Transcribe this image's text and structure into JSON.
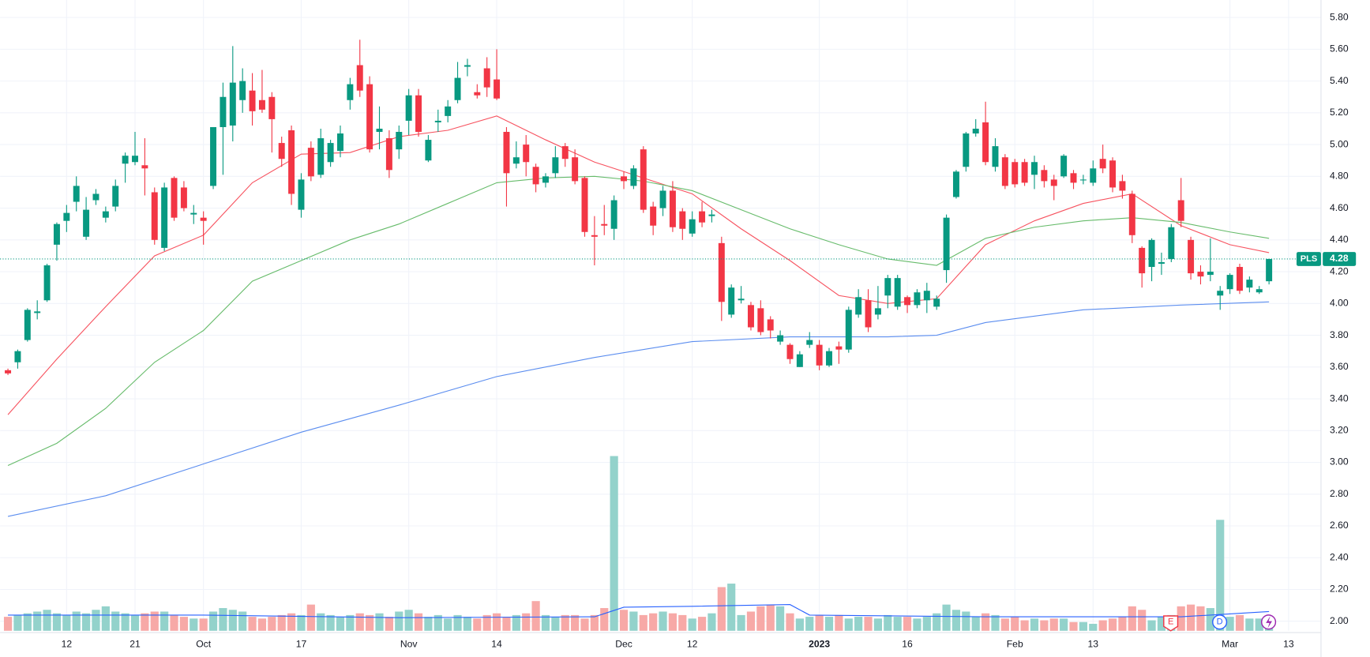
{
  "chart_data": {
    "type": "candlestick",
    "symbol": "PLS",
    "up_color": "#089981",
    "down_color": "#f23645",
    "up_volume_color": "#93d2cb",
    "down_volume_color": "#f7a9a7",
    "grid": true,
    "ylim": [
      1.94,
      5.91
    ],
    "yticks": [
      {
        "value": 2.0,
        "label": "2.00"
      },
      {
        "value": 2.2,
        "label": "2.20"
      },
      {
        "value": 2.4,
        "label": "2.40"
      },
      {
        "value": 2.6,
        "label": "2.60"
      },
      {
        "value": 2.8,
        "label": "2.80"
      },
      {
        "value": 3.0,
        "label": "3.00"
      },
      {
        "value": 3.2,
        "label": "3.20"
      },
      {
        "value": 3.4,
        "label": "3.40"
      },
      {
        "value": 3.6,
        "label": "3.60"
      },
      {
        "value": 3.8,
        "label": "3.80"
      },
      {
        "value": 4.0,
        "label": "4.00"
      },
      {
        "value": 4.2,
        "label": "4.20"
      },
      {
        "value": 4.4,
        "label": "4.40"
      },
      {
        "value": 4.6,
        "label": "4.60"
      },
      {
        "value": 4.8,
        "label": "4.80"
      },
      {
        "value": 5.0,
        "label": "5.00"
      },
      {
        "value": 5.2,
        "label": "5.20"
      },
      {
        "value": 5.4,
        "label": "5.40"
      },
      {
        "value": 5.6,
        "label": "5.60"
      },
      {
        "value": 5.8,
        "label": "5.80"
      }
    ],
    "categories": [
      null,
      null,
      null,
      null,
      null,
      null,
      "12",
      null,
      null,
      null,
      null,
      null,
      null,
      "21",
      null,
      null,
      null,
      null,
      null,
      null,
      "Oct",
      null,
      null,
      null,
      null,
      null,
      null,
      null,
      null,
      null,
      "17",
      null,
      null,
      null,
      null,
      null,
      null,
      null,
      null,
      null,
      null,
      "Nov",
      null,
      null,
      null,
      null,
      null,
      null,
      null,
      null,
      "14",
      null,
      null,
      null,
      null,
      null,
      null,
      null,
      null,
      null,
      null,
      null,
      null,
      "Dec",
      null,
      null,
      null,
      null,
      null,
      null,
      "12",
      null,
      null,
      null,
      null,
      null,
      null,
      null,
      null,
      null,
      null,
      null,
      null,
      "2023",
      null,
      null,
      null,
      null,
      null,
      null,
      null,
      null,
      "16",
      null,
      null,
      null,
      null,
      null,
      null,
      null,
      null,
      null,
      null,
      "Feb",
      null,
      null,
      null,
      null,
      null,
      null,
      null,
      "13",
      null,
      null,
      null,
      null,
      null,
      null,
      null,
      null,
      null,
      null,
      null,
      null,
      null,
      "Mar",
      null,
      null,
      null,
      null,
      null,
      "13"
    ],
    "open": [
      3.58,
      3.63,
      3.77,
      3.94,
      4.02,
      4.37,
      4.52,
      4.64,
      4.42,
      4.65,
      4.54,
      4.61,
      4.88,
      4.89,
      4.87,
      4.7,
      4.35,
      4.79,
      4.73,
      4.56,
      4.54,
      4.74,
      5.11,
      5.12,
      5.28,
      5.34,
      5.28,
      5.3,
      5.01,
      5.09,
      4.59,
      4.98,
      4.81,
      4.89,
      4.96,
      5.28,
      5.5,
      5.38,
      5.08,
      5.04,
      4.97,
      5.15,
      5.31,
      4.9,
      5.14,
      5.18,
      5.28,
      5.49,
      5.33,
      5.48,
      5.41,
      5.08,
      4.88,
      5.0,
      4.86,
      4.76,
      4.82,
      4.99,
      4.92,
      4.79,
      4.43,
      4.5,
      4.47,
      4.8,
      4.74,
      4.97,
      4.61,
      4.6,
      4.71,
      4.58,
      4.44,
      4.58,
      4.55,
      4.38,
      3.93,
      4.02,
      3.99,
      3.97,
      3.9,
      3.76,
      3.74,
      3.6,
      3.74,
      3.74,
      3.61,
      3.73,
      3.71,
      3.93,
      4.02,
      3.93,
      4.05,
      3.98,
      4.04,
      3.99,
      4.02,
      3.98,
      4.21,
      4.67,
      4.86,
      5.07,
      5.14,
      4.86,
      4.92,
      4.89,
      4.89,
      4.81,
      4.84,
      4.78,
      4.8,
      4.82,
      4.78,
      4.76,
      4.91,
      4.9,
      4.77,
      4.69,
      4.35,
      4.23,
      4.25,
      4.28,
      4.65,
      4.4,
      4.2,
      4.18,
      4.05,
      4.09,
      4.23,
      4.1,
      4.07,
      4.14,
      null,
      null
    ],
    "high": [
      3.59,
      3.71,
      3.97,
      4.02,
      4.25,
      4.51,
      4.62,
      4.8,
      4.67,
      4.72,
      4.61,
      4.78,
      4.95,
      5.08,
      5.04,
      4.73,
      4.76,
      4.8,
      4.77,
      4.62,
      4.58,
      5.11,
      5.39,
      5.62,
      5.48,
      5.45,
      5.47,
      5.33,
      5.05,
      5.12,
      4.82,
      5.02,
      5.1,
      5.03,
      5.12,
      5.42,
      5.66,
      5.43,
      5.24,
      5.09,
      5.12,
      5.35,
      5.35,
      5.06,
      5.22,
      5.28,
      5.52,
      5.54,
      5.38,
      5.55,
      5.6,
      5.11,
      5.02,
      5.06,
      4.88,
      4.82,
      4.99,
      5.01,
      4.97,
      4.8,
      4.55,
      4.62,
      4.68,
      4.83,
      4.87,
      4.99,
      4.64,
      4.74,
      4.77,
      4.6,
      4.58,
      4.64,
      4.59,
      4.42,
      4.12,
      4.11,
      4.01,
      4.02,
      3.92,
      3.83,
      3.75,
      3.7,
      3.82,
      3.77,
      3.72,
      3.76,
      3.98,
      4.09,
      4.09,
      4.11,
      4.18,
      4.18,
      4.05,
      4.09,
      4.13,
      4.05,
      4.56,
      4.84,
      5.08,
      5.16,
      5.27,
      5.04,
      4.94,
      4.91,
      4.91,
      4.93,
      4.87,
      4.81,
      4.94,
      4.84,
      4.81,
      4.9,
      5.0,
      4.92,
      4.81,
      4.71,
      4.36,
      4.41,
      4.32,
      4.5,
      4.79,
      4.42,
      4.24,
      4.41,
      4.11,
      4.19,
      4.25,
      4.17,
      4.11,
      4.28,
      null,
      null
    ],
    "low": [
      3.55,
      3.59,
      3.76,
      3.9,
      4.01,
      4.27,
      4.45,
      4.58,
      4.4,
      4.62,
      4.51,
      4.58,
      4.76,
      4.87,
      4.68,
      4.37,
      4.33,
      4.52,
      4.58,
      4.5,
      4.37,
      4.72,
      4.81,
      5.02,
      5.2,
      5.12,
      5.2,
      4.95,
      4.86,
      4.62,
      4.54,
      4.77,
      4.79,
      4.86,
      4.92,
      5.22,
      5.3,
      4.95,
      4.97,
      4.79,
      4.91,
      5.06,
      5.05,
      4.89,
      5.08,
      5.14,
      5.26,
      5.43,
      5.29,
      5.3,
      5.28,
      4.61,
      4.85,
      4.8,
      4.7,
      4.73,
      4.79,
      4.86,
      4.75,
      4.42,
      4.24,
      4.43,
      4.4,
      4.72,
      4.72,
      4.57,
      4.43,
      4.55,
      4.45,
      4.4,
      4.42,
      4.48,
      4.51,
      3.89,
      3.91,
      4.0,
      3.83,
      3.8,
      3.78,
      3.74,
      3.62,
      3.6,
      3.72,
      3.58,
      3.6,
      3.62,
      3.69,
      3.91,
      3.82,
      3.9,
      3.97,
      3.96,
      3.94,
      3.97,
      3.94,
      3.96,
      4.13,
      4.66,
      4.83,
      5.05,
      4.87,
      4.83,
      4.72,
      4.73,
      4.74,
      4.72,
      4.73,
      4.65,
      4.79,
      4.72,
      4.75,
      4.74,
      4.82,
      4.7,
      4.66,
      4.38,
      4.1,
      4.14,
      4.18,
      4.26,
      4.48,
      4.15,
      4.12,
      4.14,
      3.96,
      4.06,
      4.06,
      4.07,
      4.06,
      4.12,
      null,
      null
    ],
    "close": [
      3.56,
      3.7,
      3.96,
      3.95,
      4.24,
      4.5,
      4.57,
      4.74,
      4.59,
      4.69,
      4.58,
      4.74,
      4.93,
      4.93,
      4.85,
      4.4,
      4.73,
      4.54,
      4.6,
      4.57,
      4.52,
      5.11,
      5.3,
      5.39,
      5.4,
      5.21,
      5.22,
      5.16,
      4.91,
      4.69,
      4.78,
      4.8,
      5.04,
      5.01,
      5.07,
      5.38,
      5.34,
      4.97,
      5.1,
      4.84,
      5.08,
      5.31,
      5.08,
      5.03,
      5.15,
      5.24,
      5.42,
      5.5,
      5.31,
      5.36,
      5.29,
      4.82,
      4.92,
      4.89,
      4.75,
      4.8,
      4.92,
      4.91,
      4.77,
      4.45,
      4.42,
      4.49,
      4.65,
      4.77,
      4.85,
      4.59,
      4.49,
      4.71,
      4.48,
      4.47,
      4.53,
      4.51,
      4.56,
      4.01,
      4.1,
      4.03,
      3.85,
      3.82,
      3.83,
      3.8,
      3.65,
      3.68,
      3.77,
      3.61,
      3.7,
      3.71,
      3.96,
      4.04,
      3.85,
      3.97,
      4.16,
      4.16,
      3.99,
      4.07,
      4.08,
      4.03,
      4.54,
      4.83,
      5.07,
      5.1,
      4.89,
      4.99,
      4.74,
      4.75,
      4.76,
      4.89,
      4.77,
      4.74,
      4.93,
      4.76,
      4.78,
      4.85,
      4.85,
      4.73,
      4.71,
      4.43,
      4.19,
      4.4,
      4.26,
      4.48,
      4.52,
      4.19,
      4.17,
      4.2,
      4.08,
      4.18,
      4.08,
      4.15,
      4.09,
      4.28,
      null,
      null
    ],
    "volume": [
      16,
      18,
      20,
      22,
      24,
      20,
      18,
      22,
      20,
      24,
      28,
      22,
      20,
      18,
      20,
      22,
      22,
      18,
      16,
      14,
      14,
      22,
      26,
      24,
      22,
      16,
      14,
      16,
      18,
      20,
      18,
      30,
      20,
      18,
      16,
      18,
      20,
      18,
      20,
      16,
      22,
      24,
      20,
      16,
      18,
      14,
      18,
      16,
      14,
      18,
      20,
      16,
      18,
      20,
      34,
      18,
      16,
      18,
      18,
      14,
      18,
      26,
      200,
      24,
      22,
      18,
      20,
      22,
      20,
      18,
      14,
      16,
      20,
      50,
      54,
      18,
      22,
      28,
      30,
      28,
      20,
      14,
      16,
      18,
      16,
      18,
      14,
      16,
      16,
      14,
      18,
      16,
      16,
      14,
      16,
      20,
      30,
      24,
      22,
      16,
      20,
      18,
      14,
      16,
      12,
      14,
      12,
      14,
      14,
      10,
      10,
      8,
      12,
      14,
      16,
      28,
      24,
      12,
      16,
      18,
      28,
      30,
      28,
      26,
      127,
      16,
      18,
      14,
      14,
      12,
      null,
      null
    ],
    "overlays": [
      {
        "color": "#f7525f",
        "x": [
          0,
          5,
          10,
          15,
          20,
          25,
          30,
          35,
          40,
          45,
          50,
          55,
          60,
          65,
          70,
          75,
          80,
          85,
          90,
          95,
          100,
          105,
          110,
          115,
          120,
          125,
          129
        ],
        "values": [
          3.3,
          3.65,
          3.98,
          4.3,
          4.43,
          4.76,
          4.94,
          4.95,
          5.05,
          5.09,
          5.18,
          5.03,
          4.89,
          4.79,
          4.69,
          4.47,
          4.27,
          4.05,
          4.0,
          4.03,
          4.37,
          4.52,
          4.63,
          4.69,
          4.49,
          4.37,
          4.32
        ]
      },
      {
        "color": "#66bb6a",
        "x": [
          0,
          5,
          10,
          15,
          20,
          25,
          30,
          35,
          40,
          45,
          50,
          55,
          60,
          65,
          70,
          75,
          80,
          85,
          90,
          95,
          100,
          105,
          110,
          115,
          120,
          125,
          129
        ],
        "values": [
          2.98,
          3.12,
          3.34,
          3.63,
          3.83,
          4.14,
          4.27,
          4.4,
          4.5,
          4.63,
          4.76,
          4.79,
          4.8,
          4.77,
          4.71,
          4.59,
          4.47,
          4.37,
          4.28,
          4.24,
          4.41,
          4.48,
          4.52,
          4.54,
          4.51,
          4.45,
          4.41
        ]
      },
      {
        "color": "#5b8def",
        "x": [
          0,
          10,
          20,
          30,
          40,
          50,
          60,
          70,
          80,
          90,
          95,
          100,
          110,
          120,
          129
        ],
        "values": [
          2.66,
          2.79,
          2.99,
          3.19,
          3.36,
          3.54,
          3.66,
          3.76,
          3.79,
          3.79,
          3.8,
          3.88,
          3.96,
          3.99,
          4.01
        ]
      }
    ],
    "volume_ma": {
      "color": "#2962ff",
      "x": [
        0,
        20,
        40,
        60,
        63,
        70,
        80,
        82,
        100,
        120,
        129
      ],
      "values": [
        18,
        18,
        15,
        16,
        27,
        28,
        30,
        18,
        16,
        16,
        22
      ]
    },
    "events": [
      "E",
      "D"
    ]
  }
}
